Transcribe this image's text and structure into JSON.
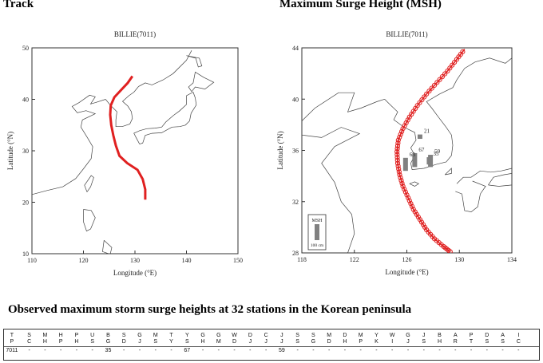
{
  "panel_titles": {
    "track": "Track",
    "msh": "Maximum Surge Height (MSH)"
  },
  "section_heading": "Observed maximum storm surge heights at 32 stations in the Korean peninsula",
  "colors": {
    "track": "#e02020",
    "coast": "#444444",
    "bar": "#808080",
    "frame": "#333333"
  },
  "chart_data": [
    {
      "type": "map",
      "title": "BILLIE(7011)",
      "xlabel": "Longitude (°E)",
      "ylabel": "Latitude (°N)",
      "xlim": [
        110,
        150
      ],
      "ylim": [
        10,
        50
      ],
      "xticks": [
        110,
        120,
        130,
        140,
        150
      ],
      "yticks": [
        10,
        20,
        30,
        40,
        50
      ],
      "track": [
        [
          132.0,
          20.5
        ],
        [
          132.0,
          22.5
        ],
        [
          131.5,
          24.5
        ],
        [
          130.5,
          26.3
        ],
        [
          128.5,
          27.6
        ],
        [
          127.0,
          29.0
        ],
        [
          126.3,
          31.0
        ],
        [
          125.8,
          33.0
        ],
        [
          125.4,
          35.0
        ],
        [
          125.2,
          37.0
        ],
        [
          125.3,
          38.8
        ],
        [
          126.0,
          40.4
        ],
        [
          127.3,
          41.8
        ],
        [
          128.6,
          43.2
        ],
        [
          129.5,
          44.5
        ]
      ]
    },
    {
      "type": "map",
      "title": "BILLIE(7011)",
      "xlabel": "Longitude (°E)",
      "ylabel": "Latitude (°N)",
      "xlim": [
        118,
        134
      ],
      "ylim": [
        28,
        44
      ],
      "xticks": [
        118,
        122,
        126,
        130,
        134
      ],
      "yticks": [
        28,
        32,
        36,
        40,
        44
      ],
      "track": [
        [
          129.3,
          28.1
        ],
        [
          128.8,
          28.5
        ],
        [
          128.1,
          29.1
        ],
        [
          127.5,
          29.8
        ],
        [
          127.0,
          30.6
        ],
        [
          126.5,
          31.4
        ],
        [
          126.1,
          32.3
        ],
        [
          125.7,
          33.2
        ],
        [
          125.45,
          34.1
        ],
        [
          125.3,
          35.0
        ],
        [
          125.25,
          35.9
        ],
        [
          125.35,
          36.8
        ],
        [
          125.7,
          37.7
        ],
        [
          126.2,
          38.6
        ],
        [
          126.8,
          39.5
        ],
        [
          127.5,
          40.4
        ],
        [
          128.3,
          41.3
        ],
        [
          129.1,
          42.2
        ],
        [
          129.8,
          43.1
        ],
        [
          130.4,
          43.9
        ]
      ],
      "stations": [
        {
          "label": "67",
          "lon": 126.6,
          "lat": 34.7,
          "value": 67
        },
        {
          "label": "59",
          "lon": 127.8,
          "lat": 34.7,
          "value": 59
        },
        {
          "label": "63",
          "lon": 125.9,
          "lat": 34.4,
          "value": 63
        },
        {
          "label": "35",
          "lon": 127.7,
          "lat": 34.9,
          "value": 35
        },
        {
          "label": "21",
          "lon": 127.0,
          "lat": 36.9,
          "value": 21
        }
      ],
      "legend": {
        "title": "MSH",
        "scale": "100 cm",
        "placement": "bottom-left"
      }
    }
  ],
  "table": {
    "headers": [
      [
        "T",
        "P"
      ],
      [
        "S",
        "C"
      ],
      [
        "M",
        "H"
      ],
      [
        "H",
        "P"
      ],
      [
        "P",
        "H"
      ],
      [
        "U",
        "S"
      ],
      [
        "B",
        "G"
      ],
      [
        "S",
        "D"
      ],
      [
        "G",
        "J"
      ],
      [
        "M",
        "S"
      ],
      [
        "T",
        "Y"
      ],
      [
        "Y",
        "S"
      ],
      [
        "G",
        "H"
      ],
      [
        "G",
        "M"
      ],
      [
        "W",
        "D"
      ],
      [
        "D",
        "J"
      ],
      [
        "C",
        "J"
      ],
      [
        "J",
        "J"
      ],
      [
        "S",
        "S"
      ],
      [
        "S",
        "G"
      ],
      [
        "M",
        "D"
      ],
      [
        "D",
        "H"
      ],
      [
        "M",
        "P"
      ],
      [
        "Y",
        "K"
      ],
      [
        "W",
        "I"
      ],
      [
        "G",
        "J"
      ],
      [
        "J",
        "S"
      ],
      [
        "B",
        "H"
      ],
      [
        "A",
        "R"
      ],
      [
        "P",
        "T"
      ],
      [
        "D",
        "S"
      ],
      [
        "A",
        "S"
      ],
      [
        "I",
        "C"
      ]
    ],
    "rows": [
      [
        "7011",
        "-",
        "-",
        "-",
        "-",
        "-",
        "35",
        "-",
        "-",
        "-",
        "-",
        "67",
        "-",
        "-",
        "-",
        "-",
        "-",
        "59",
        "-",
        "-",
        "-",
        "-",
        "-",
        "-",
        "-",
        "-",
        "-",
        "-",
        "-",
        "-",
        "-",
        "-",
        "-"
      ]
    ]
  }
}
